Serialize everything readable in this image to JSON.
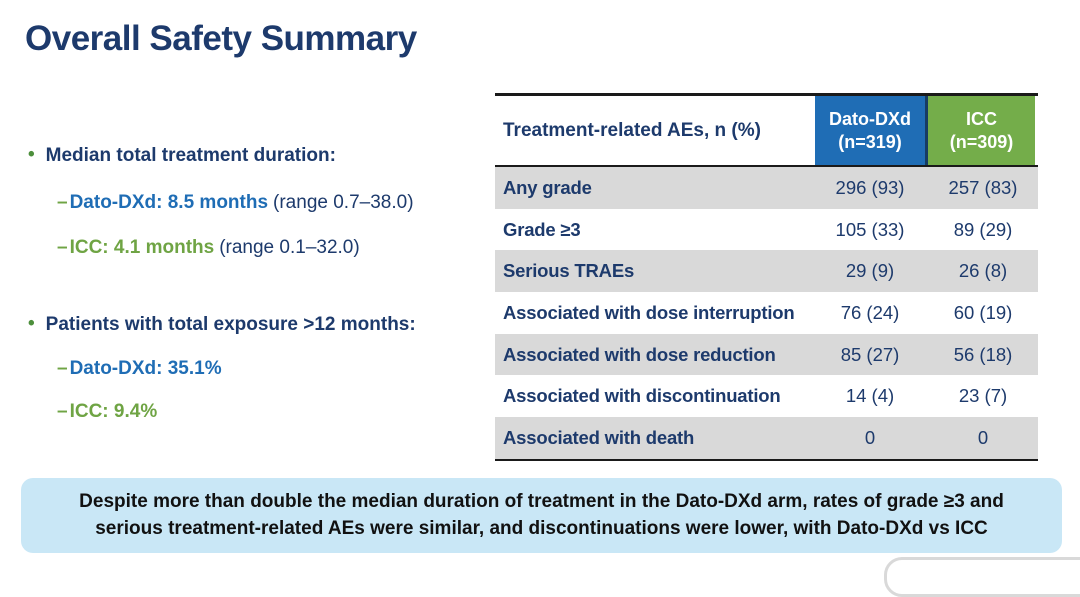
{
  "slide": {
    "title": "Overall Safety Summary"
  },
  "glyphs": {
    "bullet": "•",
    "dash": "–"
  },
  "bullets": [
    {
      "text": "Median total treatment duration:",
      "subs": [
        {
          "dash": "–",
          "label": "Dato-DXd: 8.5 months",
          "range": "(range 0.7–38.0)",
          "color": "blue"
        },
        {
          "dash": "–",
          "label": "ICC: 4.1 months",
          "range": "(range 0.1–32.0)",
          "color": "green"
        }
      ]
    },
    {
      "text": "Patients with total exposure >12 months:",
      "subs": [
        {
          "dash": "–",
          "label": "Dato-DXd: 35.1%",
          "range": "",
          "color": "blue"
        },
        {
          "dash": "–",
          "label": "ICC: 9.4%",
          "range": "",
          "color": "green"
        }
      ]
    }
  ],
  "table": {
    "header_label": "Treatment-related AEs, n (%)",
    "columns": [
      {
        "line1": "Dato-DXd",
        "line2": "(n=319)",
        "color": "#1f6db5"
      },
      {
        "line1": "ICC",
        "line2": "(n=309)",
        "color": "#74ad4a"
      }
    ],
    "rows": [
      {
        "label": "Any grade",
        "dato": "296 (93)",
        "icc": "257 (83)"
      },
      {
        "label": "Grade ≥3",
        "dato": "105 (33)",
        "icc": "89 (29)"
      },
      {
        "label": "Serious TRAEs",
        "dato": "29 (9)",
        "icc": "26 (8)"
      },
      {
        "label": "Associated with dose interruption",
        "dato": "76 (24)",
        "icc": "60 (19)"
      },
      {
        "label": "Associated with dose reduction",
        "dato": "85 (27)",
        "icc": "56 (18)"
      },
      {
        "label": "Associated with discontinuation",
        "dato": "14 (4)",
        "icc": "23 (7)"
      },
      {
        "label": "Associated with death",
        "dato": "0",
        "icc": "0"
      }
    ]
  },
  "callout": {
    "text": "Despite more than double the median duration of treatment in the Dato-DXd arm, rates of grade ≥3 and serious treatment-related AEs were similar, and discontinuations were lower, with Dato-DXd vs ICC"
  },
  "colors": {
    "navy": "#1d3a6c",
    "accent_blue": "#1f6db5",
    "accent_green": "#6fa444",
    "header_green": "#74ad4a",
    "stripe_grey": "#d9d9d9",
    "callout_bg": "#c9e7f6"
  }
}
